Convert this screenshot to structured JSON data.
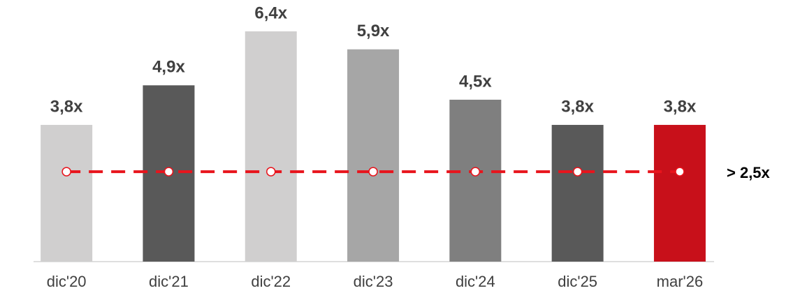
{
  "chart_data": {
    "type": "bar",
    "categories": [
      "dic'20",
      "dic'21",
      "dic'22",
      "dic'23",
      "dic'24",
      "dic'25",
      "mar'26"
    ],
    "values": [
      3.8,
      4.9,
      6.4,
      5.9,
      4.5,
      3.8,
      3.8
    ],
    "value_labels": [
      "3,8x",
      "4,9x",
      "6,4x",
      "5,9x",
      "4,5x",
      "3,8x",
      "3,8x"
    ],
    "colors": [
      "#d0cfcf",
      "#595959",
      "#d0cfcf",
      "#a6a6a6",
      "#7f7f7f",
      "#595959",
      "#c8101a"
    ],
    "ylim": [
      0,
      7
    ],
    "threshold": {
      "value": 2.5,
      "label": "> 2,5x",
      "color": "#e8141c"
    }
  }
}
